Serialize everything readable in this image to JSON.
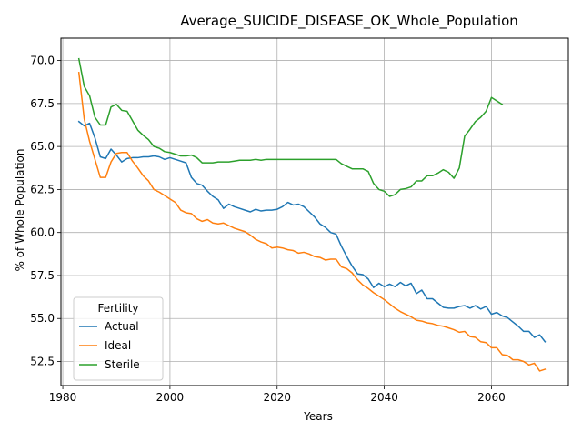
{
  "chart_data": {
    "type": "line",
    "title": "Average_SUICIDE_DISEASE_OK_Whole_Population",
    "xlabel": "Years",
    "ylabel": "% of Whole Population",
    "xlim": [
      1979.65,
      2074.35
    ],
    "ylim": [
      51.1,
      71.3
    ],
    "xticks": [
      1980,
      2000,
      2020,
      2040,
      2060
    ],
    "yticks": [
      52.5,
      55.0,
      57.5,
      60.0,
      62.5,
      65.0,
      67.5,
      70.0
    ],
    "ytick_labels": [
      "52.5",
      "55.0",
      "57.5",
      "60.0",
      "62.5",
      "65.0",
      "67.5",
      "70.0"
    ],
    "grid": true,
    "legend": {
      "title": "Fertility",
      "position": "bottom-left"
    },
    "series": [
      {
        "name": "Actual",
        "color": "#1f77b4",
        "x": [
          1983,
          1984,
          1985,
          1986,
          1987,
          1988,
          1989,
          1990,
          1991,
          1992,
          1993,
          1994,
          1995,
          1996,
          1997,
          1998,
          1999,
          2000,
          2001,
          2002,
          2003,
          2004,
          2005,
          2006,
          2007,
          2008,
          2009,
          2010,
          2011,
          2012,
          2013,
          2014,
          2015,
          2016,
          2017,
          2018,
          2019,
          2020,
          2021,
          2022,
          2023,
          2024,
          2025,
          2026,
          2027,
          2028,
          2029,
          2030,
          2031,
          2032,
          2033,
          2034,
          2035,
          2036,
          2037,
          2038,
          2039,
          2040,
          2041,
          2042,
          2043,
          2044,
          2045,
          2046,
          2047,
          2048,
          2049,
          2050,
          2051,
          2052,
          2053,
          2054,
          2055,
          2056,
          2057,
          2058,
          2059,
          2060,
          2061,
          2062,
          2063,
          2064,
          2065,
          2066,
          2067,
          2068,
          2069,
          2070
        ],
        "y": [
          66.45,
          66.2,
          66.35,
          65.5,
          64.4,
          64.3,
          64.85,
          64.5,
          64.1,
          64.3,
          64.35,
          64.35,
          64.4,
          64.4,
          64.45,
          64.4,
          64.25,
          64.35,
          64.25,
          64.15,
          64.05,
          63.2,
          62.85,
          62.75,
          62.4,
          62.1,
          61.9,
          61.4,
          61.65,
          61.5,
          61.4,
          61.3,
          61.2,
          61.35,
          61.25,
          61.3,
          61.3,
          61.35,
          61.5,
          61.75,
          61.6,
          61.65,
          61.5,
          61.2,
          60.9,
          60.5,
          60.3,
          60.0,
          59.9,
          59.2,
          58.6,
          58.05,
          57.6,
          57.55,
          57.3,
          56.8,
          57.05,
          56.85,
          57.0,
          56.85,
          57.1,
          56.9,
          57.05,
          56.45,
          56.65,
          56.15,
          56.15,
          55.9,
          55.65,
          55.6,
          55.6,
          55.7,
          55.75,
          55.6,
          55.75,
          55.55,
          55.7,
          55.25,
          55.35,
          55.15,
          55.05,
          54.8,
          54.55,
          54.25,
          54.25,
          53.9,
          54.05,
          53.65
        ]
      },
      {
        "name": "Ideal",
        "color": "#ff7f0e",
        "x": [
          1983,
          1984,
          1985,
          1986,
          1987,
          1988,
          1989,
          1990,
          1991,
          1992,
          1993,
          1994,
          1995,
          1996,
          1997,
          1998,
          1999,
          2000,
          2001,
          2002,
          2003,
          2004,
          2005,
          2006,
          2007,
          2008,
          2009,
          2010,
          2011,
          2012,
          2013,
          2014,
          2015,
          2016,
          2017,
          2018,
          2019,
          2020,
          2021,
          2022,
          2023,
          2024,
          2025,
          2026,
          2027,
          2028,
          2029,
          2030,
          2031,
          2032,
          2033,
          2034,
          2035,
          2036,
          2037,
          2038,
          2039,
          2040,
          2041,
          2042,
          2043,
          2044,
          2045,
          2046,
          2047,
          2048,
          2049,
          2050,
          2051,
          2052,
          2053,
          2054,
          2055,
          2056,
          2057,
          2058,
          2059,
          2060,
          2061,
          2062,
          2063,
          2064,
          2065,
          2066,
          2067,
          2068,
          2069,
          2070
        ],
        "y": [
          69.3,
          66.6,
          65.3,
          64.25,
          63.2,
          63.2,
          64.1,
          64.6,
          64.65,
          64.65,
          64.15,
          63.75,
          63.3,
          63.0,
          62.5,
          62.35,
          62.15,
          61.95,
          61.75,
          61.3,
          61.15,
          61.1,
          60.8,
          60.65,
          60.75,
          60.55,
          60.5,
          60.55,
          60.4,
          60.25,
          60.15,
          60.05,
          59.85,
          59.6,
          59.45,
          59.35,
          59.1,
          59.15,
          59.1,
          59.0,
          58.95,
          58.8,
          58.85,
          58.75,
          58.6,
          58.55,
          58.4,
          58.45,
          58.45,
          58.0,
          57.9,
          57.65,
          57.25,
          56.95,
          56.75,
          56.5,
          56.3,
          56.1,
          55.85,
          55.6,
          55.4,
          55.25,
          55.1,
          54.9,
          54.85,
          54.75,
          54.7,
          54.6,
          54.55,
          54.45,
          54.35,
          54.2,
          54.25,
          53.95,
          53.9,
          53.65,
          53.6,
          53.3,
          53.3,
          52.9,
          52.85,
          52.6,
          52.6,
          52.5,
          52.3,
          52.4,
          51.95,
          52.05
        ]
      },
      {
        "name": "Sterile",
        "color": "#2ca02c",
        "x": [
          1983,
          1984,
          1985,
          1986,
          1987,
          1988,
          1989,
          1990,
          1991,
          1992,
          1993,
          1994,
          1995,
          1996,
          1997,
          1998,
          1999,
          2000,
          2001,
          2002,
          2003,
          2004,
          2005,
          2006,
          2007,
          2008,
          2009,
          2010,
          2011,
          2012,
          2013,
          2014,
          2015,
          2016,
          2017,
          2018,
          2019,
          2020,
          2021,
          2022,
          2023,
          2024,
          2025,
          2026,
          2027,
          2028,
          2029,
          2030,
          2031,
          2032,
          2033,
          2034,
          2035,
          2036,
          2037,
          2038,
          2039,
          2040,
          2041,
          2042,
          2043,
          2044,
          2045,
          2046,
          2047,
          2048,
          2049,
          2050,
          2051,
          2052,
          2053,
          2054,
          2055,
          2056,
          2057,
          2058,
          2059,
          2060,
          2061,
          2062
        ],
        "y": [
          70.1,
          68.5,
          67.95,
          66.7,
          66.25,
          66.25,
          67.3,
          67.45,
          67.1,
          67.05,
          66.5,
          65.95,
          65.65,
          65.4,
          65.0,
          64.9,
          64.7,
          64.65,
          64.55,
          64.45,
          64.45,
          64.5,
          64.35,
          64.05,
          64.05,
          64.05,
          64.1,
          64.1,
          64.1,
          64.15,
          64.2,
          64.2,
          64.2,
          64.25,
          64.2,
          64.25,
          64.25,
          64.25,
          64.25,
          64.25,
          64.25,
          64.25,
          64.25,
          64.25,
          64.25,
          64.25,
          64.25,
          64.25,
          64.25,
          64.0,
          63.85,
          63.7,
          63.7,
          63.7,
          63.55,
          62.85,
          62.5,
          62.4,
          62.1,
          62.2,
          62.5,
          62.55,
          62.65,
          63.0,
          63.0,
          63.3,
          63.3,
          63.45,
          63.65,
          63.5,
          63.15,
          63.75,
          65.6,
          66.0,
          66.45,
          66.7,
          67.05,
          67.85,
          67.65,
          67.45
        ]
      }
    ]
  }
}
